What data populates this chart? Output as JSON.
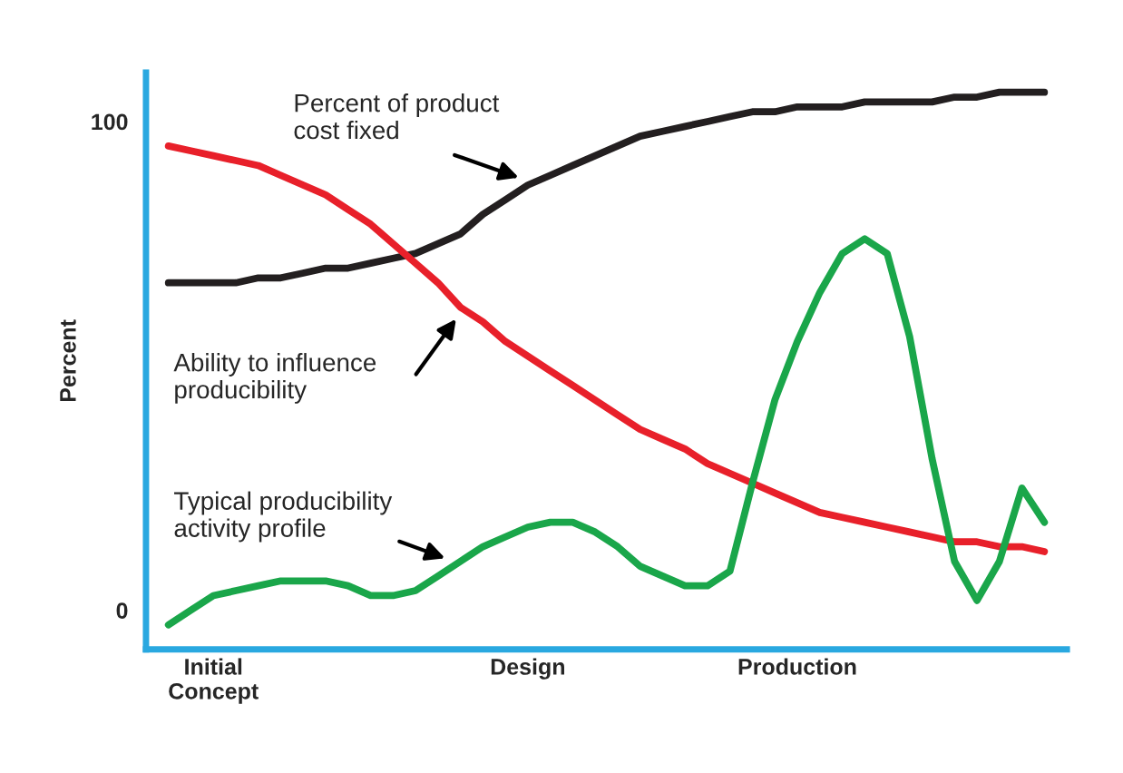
{
  "chart_data": {
    "type": "line",
    "ylabel": "Percent",
    "ylim": [
      -8,
      110
    ],
    "yticks": [
      0,
      100
    ],
    "categories": [
      null,
      null,
      "Initial\nConcept",
      null,
      null,
      null,
      null,
      null,
      null,
      null,
      null,
      null,
      null,
      null,
      null,
      null,
      "Design",
      null,
      null,
      null,
      null,
      null,
      null,
      null,
      null,
      null,
      null,
      null,
      "Production",
      null,
      null,
      null,
      null,
      null,
      null,
      null,
      null,
      null,
      null,
      null
    ],
    "series": [
      {
        "color": "#231f20",
        "values": [
          67,
          67,
          67,
          67,
          68,
          68,
          69,
          70,
          70,
          71,
          72,
          73,
          75,
          77,
          81,
          84,
          87,
          89,
          91,
          93,
          95,
          97,
          98,
          99,
          100,
          101,
          102,
          102,
          103,
          103,
          103,
          104,
          104,
          104,
          104,
          105,
          105,
          106,
          106,
          106
        ]
      },
      {
        "color": "#e8202a",
        "values": [
          95,
          94,
          93,
          92,
          91,
          89,
          87,
          85,
          82,
          79,
          75,
          71,
          67,
          62,
          59,
          55,
          52,
          49,
          46,
          43,
          40,
          37,
          35,
          33,
          30,
          28,
          26,
          24,
          22,
          20,
          19,
          18,
          17,
          16,
          15,
          14,
          14,
          13,
          13,
          12
        ]
      },
      {
        "color": "#1aa64a",
        "values": [
          -3,
          0,
          3,
          4,
          5,
          6,
          6,
          6,
          5,
          3,
          3,
          4,
          7,
          10,
          13,
          15,
          17,
          18,
          18,
          16,
          13,
          9,
          7,
          5,
          5,
          8,
          26,
          43,
          55,
          65,
          73,
          76,
          73,
          56,
          31,
          10,
          2,
          10,
          25,
          18
        ]
      }
    ],
    "annotations": [
      "Percent of product\ncost fixed",
      "Ability to influence\nproducibility",
      "Typical producibility\nactivity profile"
    ],
    "grid": false,
    "legend": false,
    "marker": "none",
    "line_style": "solid"
  }
}
